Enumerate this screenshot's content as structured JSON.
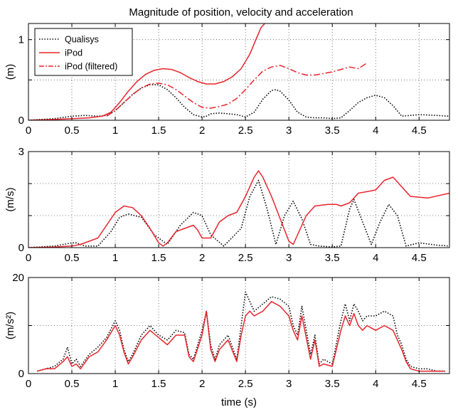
{
  "title": "Magnitude of position, velocity and acceleration",
  "legend": {
    "placement": "top-left",
    "entries": [
      {
        "label": "Qualisys",
        "color": "#000000",
        "dash": "dotted"
      },
      {
        "label": "iPod",
        "color": "#e8232b",
        "dash": "solid"
      },
      {
        "label": "iPod (filtered)",
        "color": "#e8232b",
        "dash": "dashdot"
      }
    ]
  },
  "chart_data": [
    {
      "type": "line",
      "ylabel": "(m)",
      "xlabel": "",
      "xlim": [
        0,
        4.85
      ],
      "ylim": [
        0,
        1.2
      ],
      "grid": true,
      "xticks": [
        0,
        0.5,
        1,
        1.5,
        2,
        2.5,
        3,
        3.5,
        4,
        4.5
      ],
      "xtick_labels": [
        "0",
        "0.5",
        "1",
        "1.5",
        "2",
        "2.5",
        "3",
        "3.5",
        "4",
        "4.5"
      ],
      "yticks": [
        0,
        0.5,
        1
      ],
      "ytick_labels": [
        "0",
        "",
        "1"
      ],
      "series": [
        {
          "name": "Qualisys",
          "color": "#000000",
          "dash": "dotted",
          "x": [
            0.0,
            0.3,
            0.5,
            0.65,
            0.8,
            0.9,
            1.0,
            1.1,
            1.2,
            1.3,
            1.4,
            1.5,
            1.6,
            1.7,
            1.8,
            1.9,
            2.0,
            2.05,
            2.1,
            2.2,
            2.3,
            2.4,
            2.5,
            2.6,
            2.7,
            2.8,
            2.85,
            2.9,
            3.0,
            3.1,
            3.2,
            3.3,
            3.4,
            3.5,
            3.6,
            3.7,
            3.8,
            3.9,
            4.0,
            4.1,
            4.2,
            4.3,
            4.5,
            4.7,
            4.85
          ],
          "y": [
            0.0,
            0.02,
            0.05,
            0.06,
            0.05,
            0.06,
            0.12,
            0.22,
            0.32,
            0.4,
            0.44,
            0.44,
            0.38,
            0.28,
            0.16,
            0.07,
            0.04,
            0.05,
            0.08,
            0.09,
            0.08,
            0.07,
            0.04,
            0.1,
            0.26,
            0.37,
            0.38,
            0.36,
            0.25,
            0.1,
            0.04,
            0.03,
            0.03,
            0.02,
            0.03,
            0.12,
            0.22,
            0.28,
            0.31,
            0.28,
            0.18,
            0.05,
            0.07,
            0.06,
            0.05
          ]
        },
        {
          "name": "iPod",
          "color": "#e8232b",
          "dash": "solid",
          "x": [
            0.0,
            0.3,
            0.5,
            0.7,
            0.85,
            0.95,
            1.05,
            1.15,
            1.25,
            1.35,
            1.45,
            1.55,
            1.65,
            1.75,
            1.85,
            1.95,
            2.05,
            2.15,
            2.25,
            2.35,
            2.45,
            2.55,
            2.62,
            2.68,
            2.74
          ],
          "y": [
            0.0,
            0.01,
            0.02,
            0.03,
            0.05,
            0.1,
            0.22,
            0.36,
            0.48,
            0.57,
            0.62,
            0.64,
            0.63,
            0.59,
            0.53,
            0.48,
            0.45,
            0.45,
            0.48,
            0.54,
            0.64,
            0.82,
            1.0,
            1.15,
            1.22
          ]
        },
        {
          "name": "iPod (filtered)",
          "color": "#e8232b",
          "dash": "dashdot",
          "x": [
            0.9,
            1.0,
            1.1,
            1.2,
            1.3,
            1.4,
            1.5,
            1.6,
            1.7,
            1.8,
            1.9,
            2.0,
            2.1,
            2.2,
            2.3,
            2.4,
            2.5,
            2.6,
            2.7,
            2.8,
            2.9,
            3.0,
            3.1,
            3.2,
            3.3,
            3.4,
            3.5,
            3.6,
            3.7,
            3.8,
            3.9
          ],
          "y": [
            0.05,
            0.12,
            0.22,
            0.32,
            0.4,
            0.45,
            0.46,
            0.44,
            0.38,
            0.3,
            0.22,
            0.16,
            0.15,
            0.17,
            0.2,
            0.27,
            0.38,
            0.5,
            0.61,
            0.66,
            0.68,
            0.64,
            0.59,
            0.56,
            0.56,
            0.58,
            0.6,
            0.63,
            0.66,
            0.64,
            0.71
          ]
        }
      ]
    },
    {
      "type": "line",
      "ylabel": "(m/s)",
      "xlabel": "",
      "xlim": [
        0,
        4.85
      ],
      "ylim": [
        0,
        3
      ],
      "grid": true,
      "xticks": [
        0,
        0.5,
        1,
        1.5,
        2,
        2.5,
        3,
        3.5,
        4,
        4.5
      ],
      "xtick_labels": [
        "0",
        "0.5",
        "1",
        "1.5",
        "2",
        "2.5",
        "3",
        "3.5",
        "4",
        "4.5"
      ],
      "yticks": [
        0,
        1,
        2,
        3
      ],
      "ytick_labels": [
        "0",
        "",
        "",
        "3"
      ],
      "series": [
        {
          "name": "Qualisys",
          "color": "#000000",
          "dash": "dotted",
          "x": [
            0.0,
            0.3,
            0.5,
            0.55,
            0.65,
            0.8,
            0.95,
            1.05,
            1.15,
            1.3,
            1.45,
            1.6,
            1.75,
            1.9,
            2.0,
            2.1,
            2.25,
            2.45,
            2.55,
            2.65,
            2.75,
            2.85,
            2.95,
            3.05,
            3.15,
            3.25,
            3.35,
            3.5,
            3.6,
            3.7,
            3.75,
            3.85,
            3.95,
            4.05,
            4.15,
            4.25,
            4.35,
            4.5,
            4.7,
            4.85
          ],
          "y": [
            0.0,
            0.05,
            0.15,
            0.15,
            0.05,
            0.05,
            0.5,
            0.95,
            1.05,
            0.95,
            0.4,
            0.1,
            0.7,
            1.1,
            1.0,
            0.4,
            0.05,
            0.6,
            1.6,
            2.1,
            1.2,
            0.1,
            1.0,
            1.45,
            0.9,
            0.1,
            0.05,
            0.02,
            0.05,
            1.2,
            1.5,
            0.8,
            0.1,
            0.8,
            1.35,
            1.0,
            0.05,
            0.15,
            0.08,
            0.05
          ]
        },
        {
          "name": "iPod",
          "color": "#e8232b",
          "dash": "solid",
          "x": [
            0.0,
            0.3,
            0.5,
            0.6,
            0.7,
            0.8,
            0.9,
            1.0,
            1.1,
            1.2,
            1.3,
            1.4,
            1.5,
            1.55,
            1.6,
            1.7,
            1.8,
            1.9,
            1.95,
            2.0,
            2.1,
            2.2,
            2.3,
            2.4,
            2.5,
            2.6,
            2.65,
            2.7,
            2.8,
            2.9,
            3.0,
            3.05,
            3.1,
            3.2,
            3.3,
            3.45,
            3.55,
            3.6,
            3.7,
            3.8,
            4.0,
            4.1,
            4.2,
            4.3,
            4.4,
            4.6,
            4.85
          ],
          "y": [
            0.0,
            0.02,
            0.05,
            0.1,
            0.2,
            0.3,
            0.7,
            1.1,
            1.3,
            1.25,
            1.0,
            0.6,
            0.15,
            0.05,
            0.15,
            0.5,
            0.6,
            0.7,
            0.55,
            0.3,
            0.3,
            0.8,
            1.0,
            1.1,
            1.6,
            2.2,
            2.4,
            2.2,
            1.6,
            0.9,
            0.2,
            0.1,
            0.4,
            1.0,
            1.3,
            1.35,
            1.35,
            1.3,
            1.4,
            1.7,
            1.8,
            2.1,
            2.2,
            1.9,
            1.6,
            1.55,
            1.7
          ]
        }
      ]
    },
    {
      "type": "line",
      "ylabel": "(m/s²)",
      "xlabel": "time (s)",
      "xlim": [
        0,
        4.85
      ],
      "ylim": [
        0,
        20
      ],
      "grid": true,
      "xticks": [
        0,
        0.5,
        1,
        1.5,
        2,
        2.5,
        3,
        3.5,
        4,
        4.5
      ],
      "xtick_labels": [
        "0",
        "0.5",
        "1",
        "1.5",
        "2",
        "2.5",
        "3",
        "3.5",
        "4",
        "4.5"
      ],
      "yticks": [
        0,
        10,
        20
      ],
      "ytick_labels": [
        "0",
        "",
        "20"
      ],
      "series": [
        {
          "name": "Qualisys",
          "color": "#000000",
          "dash": "dotted",
          "x": [
            0.1,
            0.2,
            0.3,
            0.4,
            0.45,
            0.5,
            0.55,
            0.6,
            0.7,
            0.8,
            0.9,
            1.0,
            1.05,
            1.1,
            1.15,
            1.2,
            1.3,
            1.4,
            1.5,
            1.6,
            1.7,
            1.8,
            1.85,
            1.9,
            2.0,
            2.05,
            2.1,
            2.15,
            2.2,
            2.3,
            2.4,
            2.45,
            2.5,
            2.55,
            2.6,
            2.7,
            2.8,
            2.9,
            3.0,
            3.05,
            3.1,
            3.15,
            3.2,
            3.25,
            3.3,
            3.35,
            3.4,
            3.5,
            3.6,
            3.65,
            3.7,
            3.75,
            3.8,
            3.85,
            3.9,
            4.0,
            4.1,
            4.2,
            4.25,
            4.3,
            4.35,
            4.4,
            4.5,
            4.6,
            4.7,
            4.8
          ],
          "y": [
            0.5,
            1.0,
            1.5,
            3.0,
            5.5,
            2.0,
            3.0,
            1.5,
            4.0,
            5.5,
            7.5,
            11.0,
            9.0,
            5.0,
            2.5,
            4.0,
            8.0,
            10.0,
            8.0,
            7.0,
            9.0,
            8.5,
            4.0,
            3.0,
            9.0,
            13.0,
            6.0,
            3.0,
            6.0,
            8.0,
            3.0,
            10.0,
            17.0,
            15.0,
            13.0,
            14.5,
            16.0,
            15.5,
            14.0,
            10.0,
            8.0,
            14.0,
            9.0,
            4.0,
            8.0,
            2.0,
            3.0,
            2.0,
            11.0,
            14.5,
            11.0,
            14.5,
            13.0,
            11.0,
            12.0,
            12.0,
            13.0,
            12.0,
            8.0,
            6.0,
            3.0,
            1.5,
            1.0,
            1.0,
            0.5,
            0.5
          ]
        },
        {
          "name": "iPod",
          "color": "#e8232b",
          "dash": "solid",
          "x": [
            0.1,
            0.2,
            0.3,
            0.4,
            0.45,
            0.5,
            0.55,
            0.6,
            0.7,
            0.8,
            0.9,
            1.0,
            1.05,
            1.1,
            1.15,
            1.2,
            1.3,
            1.4,
            1.5,
            1.6,
            1.7,
            1.8,
            1.85,
            1.9,
            2.0,
            2.05,
            2.1,
            2.15,
            2.2,
            2.3,
            2.4,
            2.45,
            2.5,
            2.55,
            2.6,
            2.7,
            2.8,
            2.9,
            3.0,
            3.05,
            3.1,
            3.15,
            3.2,
            3.25,
            3.3,
            3.35,
            3.4,
            3.5,
            3.6,
            3.65,
            3.7,
            3.75,
            3.8,
            3.85,
            3.9,
            4.0,
            4.1,
            4.2,
            4.25,
            4.3,
            4.35,
            4.4,
            4.5,
            4.6,
            4.7,
            4.8
          ],
          "y": [
            0.5,
            1.0,
            1.0,
            2.5,
            3.5,
            1.5,
            2.0,
            1.0,
            3.5,
            4.5,
            7.0,
            10.0,
            8.0,
            4.5,
            2.0,
            3.5,
            7.0,
            9.0,
            7.5,
            6.0,
            8.0,
            8.0,
            3.5,
            2.5,
            8.0,
            13.0,
            5.0,
            2.5,
            5.0,
            7.0,
            2.5,
            8.0,
            12.0,
            13.0,
            12.0,
            13.0,
            15.0,
            14.0,
            12.0,
            9.0,
            7.0,
            12.0,
            7.5,
            3.0,
            7.0,
            1.5,
            2.0,
            1.5,
            9.0,
            12.0,
            10.0,
            12.5,
            10.0,
            9.0,
            10.0,
            9.0,
            10.0,
            9.0,
            7.0,
            5.0,
            2.5,
            1.0,
            0.5,
            0.5,
            0.5,
            0.5
          ]
        }
      ]
    }
  ]
}
